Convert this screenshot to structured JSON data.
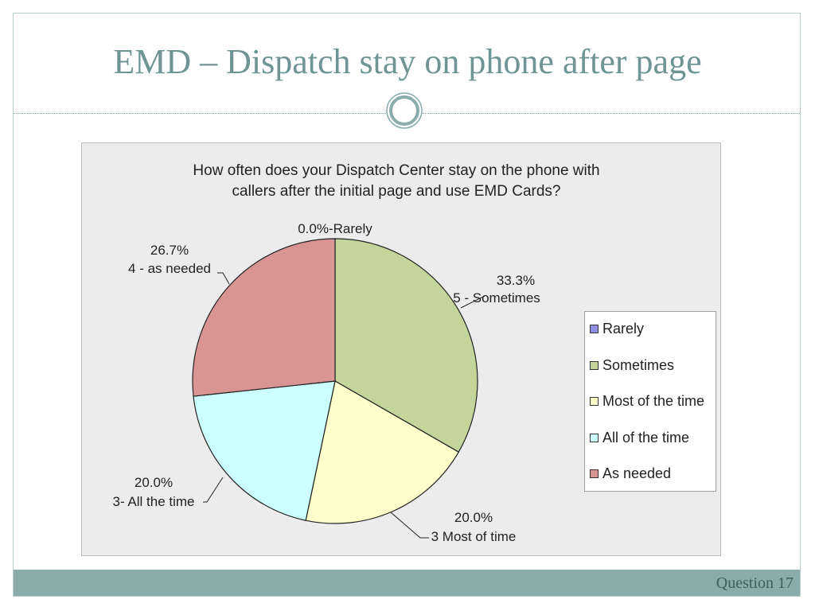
{
  "slide": {
    "title": "EMD – Dispatch stay on phone after page",
    "footer": "Question 17"
  },
  "colors": {
    "theme": "#8aacab",
    "title": "#6e9594"
  },
  "chart_data": {
    "type": "pie",
    "title": "How often does your Dispatch Center stay on the phone with\ncallers after the initial page and use EMD Cards?",
    "legend_position": "right",
    "slices": [
      {
        "legend": "Rarely",
        "value": 0.0,
        "percent_label": "0.0%",
        "category_label": "Rarely",
        "color": "#8f8fdf"
      },
      {
        "legend": "Sometimes",
        "value": 33.3,
        "percent_label": "33.3%",
        "category_label": "5 - Sometimes",
        "color": "#c4d59c"
      },
      {
        "legend": "Most of the time",
        "value": 20.0,
        "percent_label": "20.0%",
        "category_label": "3 Most of time",
        "color": "#ffffcc"
      },
      {
        "legend": "All of the time",
        "value": 20.0,
        "percent_label": "20.0%",
        "category_label": "3- All the time",
        "color": "#ccffff"
      },
      {
        "legend": "As needed",
        "value": 26.7,
        "percent_label": "26.7%",
        "category_label": "4 - as needed",
        "color": "#d99594"
      }
    ],
    "rarely_combined_label": "0.0%-Rarely"
  }
}
